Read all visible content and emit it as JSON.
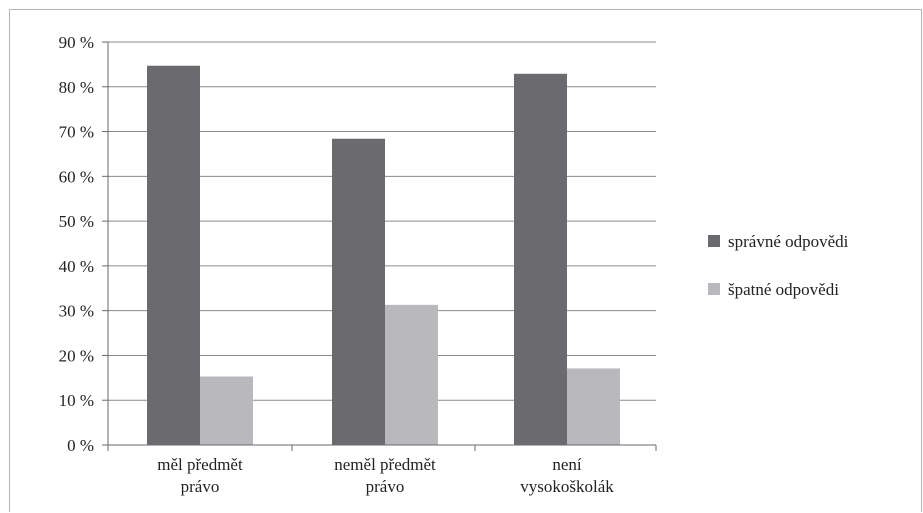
{
  "chart_data": {
    "type": "bar",
    "categories": [
      [
        "měl předmět",
        "právo"
      ],
      [
        "neměl předmět",
        "právo"
      ],
      [
        "není",
        "vysokoškolák"
      ]
    ],
    "series": [
      {
        "name": "správné odpovědi",
        "values": [
          84.7,
          68.4,
          82.9
        ],
        "color": "#6b6b6f"
      },
      {
        "name": "špatné odpovědi",
        "values": [
          15.3,
          31.3,
          17.1
        ],
        "color": "#b9b9bd"
      }
    ],
    "ylim": [
      0,
      90
    ],
    "yticks": [
      0,
      10,
      20,
      30,
      40,
      50,
      60,
      70,
      80,
      90
    ],
    "ytick_labels": [
      "0 %",
      "10 %",
      "20 %",
      "30 %",
      "40 %",
      "50 %",
      "60 %",
      "70 %",
      "80 %",
      "90 %"
    ],
    "grid": true,
    "legend_position": "right",
    "title": "",
    "xlabel": "",
    "ylabel": ""
  }
}
